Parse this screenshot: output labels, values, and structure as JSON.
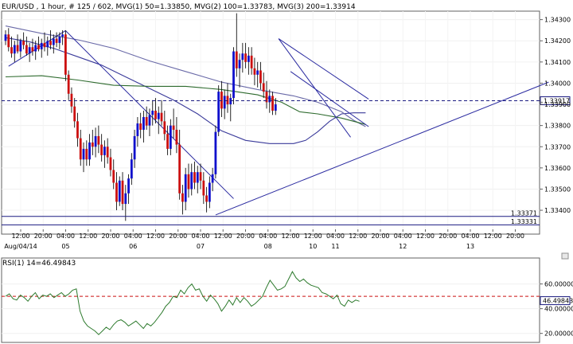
{
  "header": {
    "text": "EUR/USD , 1 hour, # 125 / 602, MVG(1) 50=1.33850, MVG(2) 100=1.33783, MVG(3) 200=1.33914"
  },
  "rsi_header": {
    "text": "RSI(1) 14=46.49843"
  },
  "colors": {
    "bull_candle": "#1010cc",
    "bear_candle": "#cc1010",
    "mvg1": "#3a3a9a",
    "mvg2": "#6a6aa8",
    "mvg3": "#2d6a2d",
    "trend": "#2a2aa0",
    "ref_line": "#1a1a80",
    "current_line": "#1a1a80",
    "rsi_line": "#2d7a2d",
    "rsi_ref": "#cc1010"
  },
  "chart_data": [
    {
      "type": "candlestick",
      "title": "EUR/USD , 1 hour",
      "ylim": [
        1.3331,
        1.3434
      ],
      "y_ticks": [
        "1.34300",
        "1.34200",
        "1.34100",
        "1.34000",
        "1.33900",
        "1.33800",
        "1.33700",
        "1.33600",
        "1.33500",
        "1.33400"
      ],
      "y_tick_values": [
        1.343,
        1.342,
        1.341,
        1.34,
        1.339,
        1.338,
        1.337,
        1.336,
        1.335,
        1.334
      ],
      "x_labels": [
        {
          "time": "12:00",
          "date": "Aug/04/14"
        },
        {
          "time": "20:00",
          "date": ""
        },
        {
          "time": "04:00",
          "date": "05"
        },
        {
          "time": "12:00",
          "date": ""
        },
        {
          "time": "20:00",
          "date": ""
        },
        {
          "time": "04:00",
          "date": "06"
        },
        {
          "time": "12:00",
          "date": ""
        },
        {
          "time": "20:00",
          "date": ""
        },
        {
          "time": "04:00",
          "date": "07"
        },
        {
          "time": "12:00",
          "date": ""
        },
        {
          "time": "20:00",
          "date": ""
        },
        {
          "time": "04:00",
          "date": "08"
        },
        {
          "time": "12:00",
          "date": ""
        },
        {
          "time": "12:00",
          "date": "10"
        },
        {
          "time": "04:00",
          "date": "11"
        },
        {
          "time": "12:00",
          "date": ""
        },
        {
          "time": "20:00",
          "date": ""
        },
        {
          "time": "04:00",
          "date": "12"
        },
        {
          "time": "12:00",
          "date": ""
        },
        {
          "time": "20:00",
          "date": ""
        },
        {
          "time": "04:00",
          "date": "13"
        },
        {
          "time": "12:00",
          "date": ""
        },
        {
          "time": "20:00",
          "date": ""
        }
      ],
      "current_price": "1.33917",
      "current_price_value": 1.33917,
      "alt_price_value": 1.3391,
      "ref_levels": [
        {
          "label": "1.33371",
          "value": 1.33371
        },
        {
          "label": "1.33331",
          "value": 1.33331
        }
      ],
      "moving_averages": [
        {
          "name": "MVG(1) 50",
          "value": 1.3385,
          "points": [
            [
              0,
              1.34215
            ],
            [
              8,
              1.34195
            ],
            [
              16,
              1.34165
            ],
            [
              24,
              1.34125
            ],
            [
              32,
              1.34085
            ],
            [
              40,
              1.3403
            ],
            [
              48,
              1.33975
            ],
            [
              56,
              1.3392
            ],
            [
              64,
              1.33855
            ],
            [
              72,
              1.33775
            ],
            [
              80,
              1.3373
            ],
            [
              88,
              1.33715
            ],
            [
              96,
              1.33715
            ],
            [
              100,
              1.3373
            ],
            [
              104,
              1.3377
            ],
            [
              108,
              1.3382
            ],
            [
              112,
              1.33855
            ],
            [
              116,
              1.3386
            ],
            [
              120,
              1.3386
            ]
          ]
        },
        {
          "name": "MVG(2) 100",
          "value": 1.33783,
          "points": [
            [
              0,
              1.3427
            ],
            [
              12,
              1.34235
            ],
            [
              24,
              1.34205
            ],
            [
              36,
              1.34165
            ],
            [
              48,
              1.34105
            ],
            [
              60,
              1.34055
            ],
            [
              72,
              1.34005
            ],
            [
              84,
              1.3397
            ],
            [
              96,
              1.3394
            ],
            [
              104,
              1.3391
            ],
            [
              112,
              1.33865
            ],
            [
              116,
              1.33825
            ],
            [
              120,
              1.33795
            ]
          ]
        },
        {
          "name": "MVG(3) 200",
          "value": 1.33914,
          "points": [
            [
              0,
              1.3403
            ],
            [
              12,
              1.34035
            ],
            [
              24,
              1.34015
            ],
            [
              36,
              1.3399
            ],
            [
              48,
              1.33985
            ],
            [
              60,
              1.33985
            ],
            [
              72,
              1.3397
            ],
            [
              84,
              1.33945
            ],
            [
              92,
              1.3391
            ],
            [
              98,
              1.33865
            ],
            [
              104,
              1.33855
            ],
            [
              112,
              1.33835
            ],
            [
              116,
              1.3382
            ],
            [
              120,
              1.33805
            ]
          ]
        }
      ],
      "trend_lines": [
        {
          "from": [
            70,
            1.33378
          ],
          "to": [
            181,
            1.34005
          ]
        },
        {
          "from": [
            1,
            1.3408
          ],
          "to": [
            20,
            1.34248
          ]
        },
        {
          "from": [
            20,
            1.34248
          ],
          "to": [
            76,
            1.33455
          ]
        },
        {
          "from": [
            91,
            1.3421
          ],
          "to": [
            121,
            1.33925
          ]
        },
        {
          "from": [
            95,
            1.34055
          ],
          "to": [
            121,
            1.33795
          ]
        },
        {
          "from": [
            91,
            1.3421
          ],
          "to": [
            115,
            1.33745
          ]
        }
      ],
      "candles": [
        [
          1.342,
          1.3425,
          1.3418,
          1.3423
        ],
        [
          1.3423,
          1.3426,
          1.3415,
          1.3417
        ],
        [
          1.3417,
          1.3422,
          1.3412,
          1.3414
        ],
        [
          1.3414,
          1.342,
          1.341,
          1.3418
        ],
        [
          1.3418,
          1.3423,
          1.3414,
          1.3415
        ],
        [
          1.3415,
          1.3421,
          1.3412,
          1.342
        ],
        [
          1.342,
          1.3424,
          1.3416,
          1.3418
        ],
        [
          1.3418,
          1.3422,
          1.3413,
          1.3414
        ],
        [
          1.3414,
          1.3419,
          1.341,
          1.3417
        ],
        [
          1.3417,
          1.3421,
          1.3413,
          1.3415
        ],
        [
          1.3415,
          1.342,
          1.3411,
          1.3418
        ],
        [
          1.3418,
          1.3422,
          1.3415,
          1.3416
        ],
        [
          1.3416,
          1.3421,
          1.3412,
          1.3419
        ],
        [
          1.3419,
          1.3424,
          1.3415,
          1.3417
        ],
        [
          1.3417,
          1.3422,
          1.3413,
          1.342
        ],
        [
          1.342,
          1.3425,
          1.3416,
          1.3418
        ],
        [
          1.3418,
          1.3423,
          1.3414,
          1.3421
        ],
        [
          1.3421,
          1.3424,
          1.3417,
          1.3419
        ],
        [
          1.3419,
          1.3424,
          1.3416,
          1.3422
        ],
        [
          1.3422,
          1.3425,
          1.3418,
          1.3423
        ],
        [
          1.3423,
          1.3425,
          1.3401,
          1.3404
        ],
        [
          1.3404,
          1.3406,
          1.3392,
          1.3395
        ],
        [
          1.3395,
          1.3398,
          1.3386,
          1.3389
        ],
        [
          1.3389,
          1.3393,
          1.3379,
          1.3382
        ],
        [
          1.3382,
          1.3386,
          1.337,
          1.3374
        ],
        [
          1.3374,
          1.3378,
          1.3361,
          1.3364
        ],
        [
          1.3364,
          1.3372,
          1.3358,
          1.3369
        ],
        [
          1.3369,
          1.3373,
          1.3361,
          1.3364
        ],
        [
          1.3364,
          1.3376,
          1.3361,
          1.3372
        ],
        [
          1.3372,
          1.3378,
          1.3366,
          1.337
        ],
        [
          1.337,
          1.3379,
          1.3365,
          1.3375
        ],
        [
          1.3375,
          1.338,
          1.3367,
          1.3371
        ],
        [
          1.3371,
          1.3376,
          1.3363,
          1.3366
        ],
        [
          1.3366,
          1.3373,
          1.336,
          1.337
        ],
        [
          1.337,
          1.3374,
          1.3362,
          1.3365
        ],
        [
          1.3365,
          1.3369,
          1.3356,
          1.3359
        ],
        [
          1.3359,
          1.3364,
          1.335,
          1.3353
        ],
        [
          1.3353,
          1.3358,
          1.334,
          1.3344
        ],
        [
          1.3344,
          1.3356,
          1.3342,
          1.3354
        ],
        [
          1.3354,
          1.3358,
          1.334,
          1.3343
        ],
        [
          1.3343,
          1.3352,
          1.3335,
          1.3348
        ],
        [
          1.3348,
          1.3357,
          1.3343,
          1.3355
        ],
        [
          1.3355,
          1.3367,
          1.3352,
          1.3364
        ],
        [
          1.3364,
          1.3378,
          1.336,
          1.3375
        ],
        [
          1.3375,
          1.3384,
          1.337,
          1.3381
        ],
        [
          1.3381,
          1.3386,
          1.3374,
          1.3378
        ],
        [
          1.3378,
          1.3387,
          1.3372,
          1.3384
        ],
        [
          1.3384,
          1.3389,
          1.3378,
          1.338
        ],
        [
          1.338,
          1.3388,
          1.3375,
          1.3385
        ],
        [
          1.3385,
          1.3392,
          1.338,
          1.3387
        ],
        [
          1.3387,
          1.3393,
          1.3381,
          1.3383
        ],
        [
          1.3383,
          1.3389,
          1.3376,
          1.3386
        ],
        [
          1.3386,
          1.3392,
          1.338,
          1.3382
        ],
        [
          1.3382,
          1.3387,
          1.3373,
          1.3376
        ],
        [
          1.3376,
          1.338,
          1.3366,
          1.3369
        ],
        [
          1.3369,
          1.3383,
          1.3366,
          1.338
        ],
        [
          1.338,
          1.3388,
          1.3374,
          1.3378
        ],
        [
          1.3378,
          1.3384,
          1.3367,
          1.3371
        ],
        [
          1.3371,
          1.3378,
          1.3345,
          1.3348
        ],
        [
          1.3348,
          1.3352,
          1.3338,
          1.3344
        ],
        [
          1.3344,
          1.336,
          1.334,
          1.3357
        ],
        [
          1.3357,
          1.3362,
          1.3346,
          1.335
        ],
        [
          1.335,
          1.3362,
          1.3347,
          1.3358
        ],
        [
          1.3358,
          1.3363,
          1.335,
          1.3353
        ],
        [
          1.3353,
          1.3361,
          1.3348,
          1.3358
        ],
        [
          1.3358,
          1.3362,
          1.335,
          1.3354
        ],
        [
          1.3354,
          1.3358,
          1.3343,
          1.3347
        ],
        [
          1.3347,
          1.3351,
          1.3339,
          1.3344
        ],
        [
          1.3344,
          1.3356,
          1.3341,
          1.3353
        ],
        [
          1.3353,
          1.336,
          1.3349,
          1.3357
        ],
        [
          1.3357,
          1.338,
          1.3355,
          1.3377
        ],
        [
          1.3377,
          1.3399,
          1.3375,
          1.3396
        ],
        [
          1.3396,
          1.3401,
          1.3384,
          1.3388
        ],
        [
          1.3388,
          1.3397,
          1.3383,
          1.3394
        ],
        [
          1.3394,
          1.34,
          1.3386,
          1.339
        ],
        [
          1.339,
          1.3395,
          1.3382,
          1.3393
        ],
        [
          1.3393,
          1.3417,
          1.339,
          1.3415
        ],
        [
          1.3415,
          1.3433,
          1.3403,
          1.3407
        ],
        [
          1.3407,
          1.3414,
          1.3398,
          1.3411
        ],
        [
          1.3411,
          1.3419,
          1.3405,
          1.3414
        ],
        [
          1.3414,
          1.3419,
          1.3407,
          1.341
        ],
        [
          1.341,
          1.3417,
          1.3404,
          1.3413
        ],
        [
          1.3413,
          1.3417,
          1.3404,
          1.3407
        ],
        [
          1.3407,
          1.3412,
          1.3399,
          1.3404
        ],
        [
          1.3404,
          1.341,
          1.3398,
          1.3406
        ],
        [
          1.3406,
          1.341,
          1.3397,
          1.34
        ],
        [
          1.34,
          1.3405,
          1.3393,
          1.3396
        ],
        [
          1.3396,
          1.3401,
          1.3388,
          1.3391
        ],
        [
          1.3391,
          1.3397,
          1.3386,
          1.3394
        ],
        [
          1.3394,
          1.3396,
          1.3385,
          1.3387
        ],
        [
          1.3387,
          1.3393,
          1.3385,
          1.339
        ]
      ]
    },
    {
      "type": "line",
      "title": "RSI(1) 14=46.49843",
      "ylim": [
        14,
        72
      ],
      "y_ticks": [
        "60.00000",
        "40.00000",
        "20.00000"
      ],
      "y_tick_values": [
        60,
        40,
        20
      ],
      "current_value": "46.49843",
      "current_value_num": 46.49843,
      "ref_level": 50,
      "values": [
        50,
        52,
        48,
        47,
        51,
        49,
        46,
        50,
        53,
        48,
        51,
        50,
        52,
        49,
        51,
        53,
        50,
        52,
        55,
        56,
        38,
        30,
        26,
        24,
        22,
        19,
        22,
        25,
        23,
        27,
        30,
        31,
        29,
        26,
        28,
        30,
        27,
        24,
        28,
        26,
        29,
        33,
        37,
        42,
        45,
        50,
        49,
        55,
        52,
        57,
        60,
        55,
        56,
        50,
        46,
        51,
        48,
        44,
        38,
        42,
        47,
        43,
        49,
        45,
        49,
        46,
        42,
        44,
        47,
        50,
        57,
        63,
        59,
        55,
        56,
        58,
        64,
        70,
        65,
        62,
        64,
        61,
        59,
        58,
        57,
        53,
        52,
        50,
        48,
        51,
        44,
        42,
        47,
        45,
        47,
        46
      ]
    }
  ]
}
